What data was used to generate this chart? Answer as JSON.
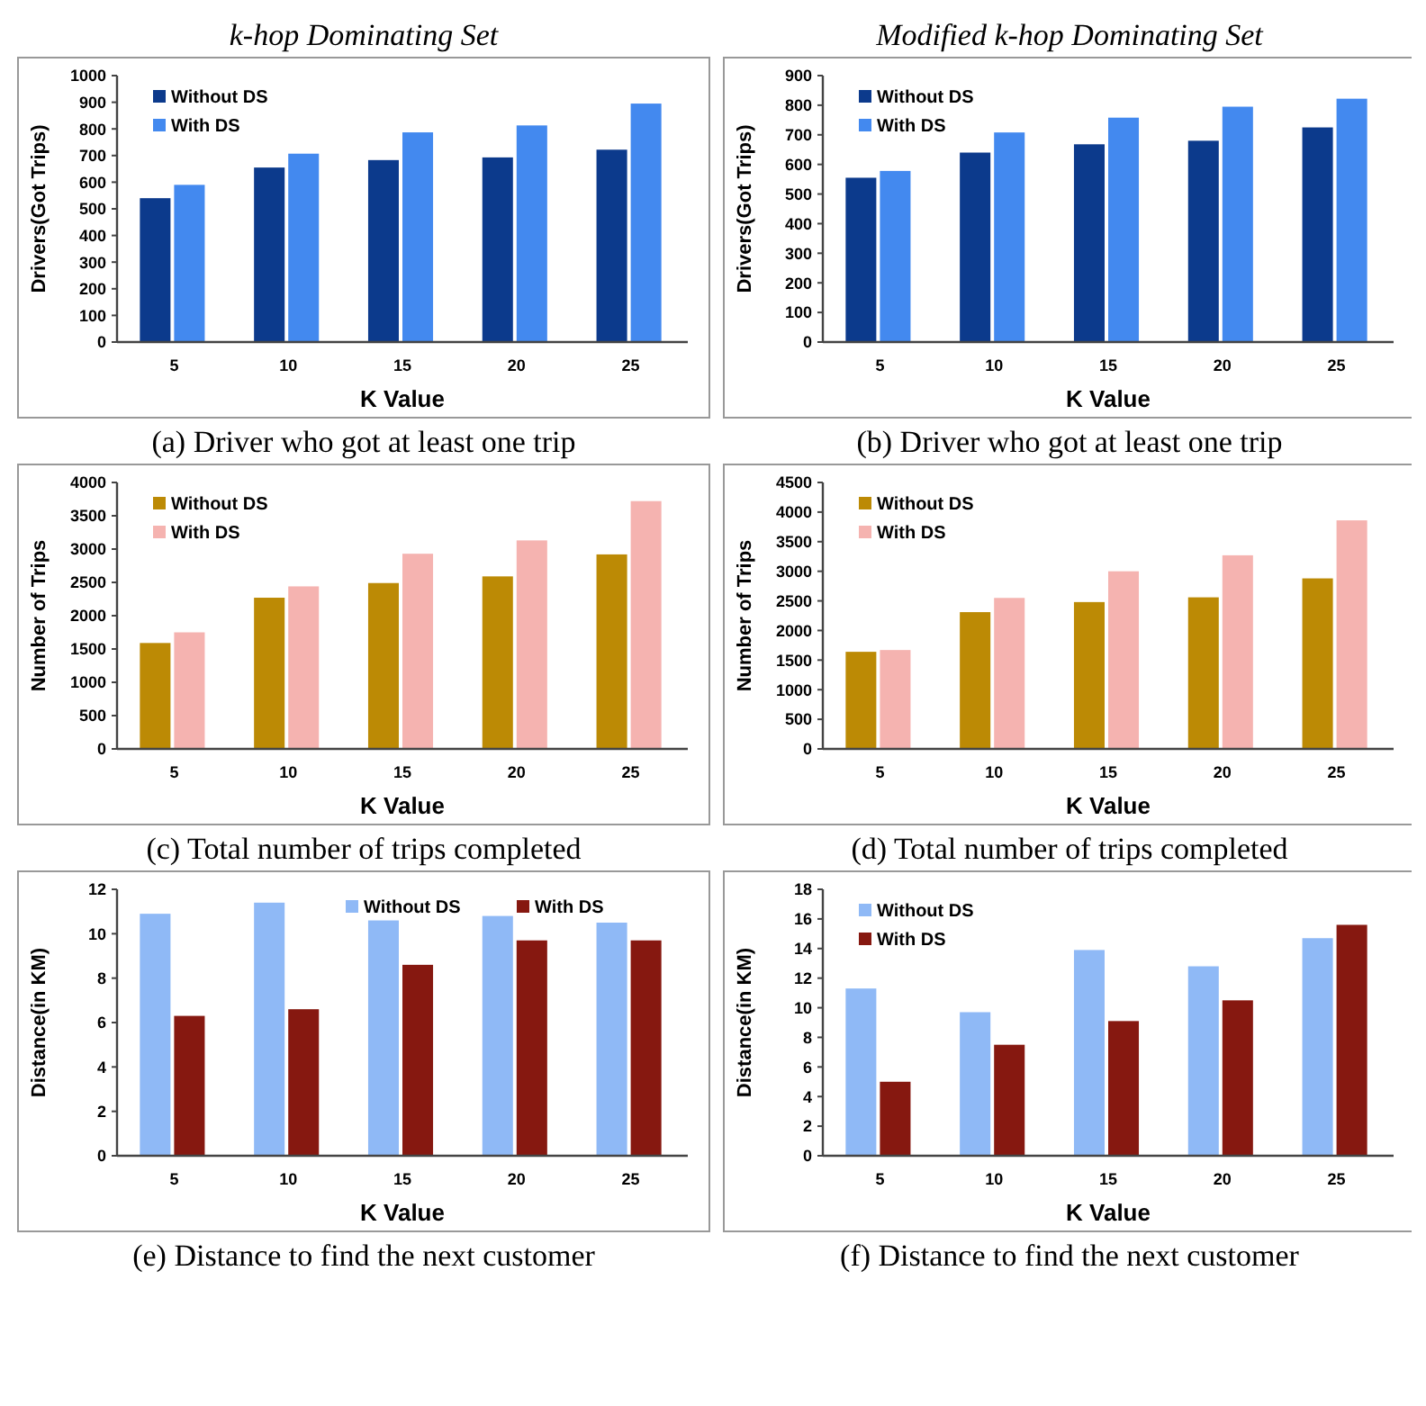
{
  "chart_data": [
    {
      "type": "bar",
      "title": "k-hop Dominating Set",
      "xlabel": "K Value",
      "ylabel": "Drivers(Got Trips)",
      "categories": [
        "5",
        "10",
        "15",
        "20",
        "25"
      ],
      "ylim": [
        0,
        1000
      ],
      "yticks": [
        0,
        100,
        200,
        300,
        400,
        500,
        600,
        700,
        800,
        900,
        1000
      ],
      "legend": "top left",
      "grid": false,
      "annotations": [
        "(a) Driver who got at least one trip"
      ],
      "series": [
        {
          "name": "Without DS",
          "color": "#0c3a8c",
          "values": [
            540,
            655,
            683,
            693,
            722
          ]
        },
        {
          "name": "With DS",
          "color": "#4389ef",
          "values": [
            590,
            707,
            787,
            813,
            895
          ]
        }
      ]
    },
    {
      "type": "bar",
      "title": "Modified k-hop Dominating Set",
      "xlabel": "K Value",
      "ylabel": "Drivers(Got Trips)",
      "categories": [
        "5",
        "10",
        "15",
        "20",
        "25"
      ],
      "ylim": [
        0,
        900
      ],
      "yticks": [
        0,
        100,
        200,
        300,
        400,
        500,
        600,
        700,
        800,
        900
      ],
      "legend": "top left",
      "grid": false,
      "annotations": [
        "(b) Driver who got at least one trip"
      ],
      "series": [
        {
          "name": "Without DS",
          "color": "#0c3a8c",
          "values": [
            555,
            640,
            668,
            680,
            725
          ]
        },
        {
          "name": "With DS",
          "color": "#4389ef",
          "values": [
            578,
            708,
            758,
            795,
            822
          ]
        }
      ]
    },
    {
      "type": "bar",
      "xlabel": "K Value",
      "ylabel": "Number of Trips",
      "categories": [
        "5",
        "10",
        "15",
        "20",
        "25"
      ],
      "ylim": [
        0,
        4000
      ],
      "yticks": [
        0,
        500,
        1000,
        1500,
        2000,
        2500,
        3000,
        3500,
        4000
      ],
      "legend": "top left",
      "grid": false,
      "annotations": [
        "(c) Total number of trips completed"
      ],
      "series": [
        {
          "name": "Without DS",
          "color": "#bc8a05",
          "values": [
            1590,
            2270,
            2490,
            2590,
            2920
          ]
        },
        {
          "name": "With DS",
          "color": "#f5b3b0",
          "values": [
            1750,
            2440,
            2930,
            3130,
            3720
          ]
        }
      ]
    },
    {
      "type": "bar",
      "xlabel": "K Value",
      "ylabel": "Number of Trips",
      "categories": [
        "5",
        "10",
        "15",
        "20",
        "25"
      ],
      "ylim": [
        0,
        4500
      ],
      "yticks": [
        0,
        500,
        1000,
        1500,
        2000,
        2500,
        3000,
        3500,
        4000,
        4500
      ],
      "legend": "top left",
      "grid": false,
      "annotations": [
        "(d) Total number of trips completed"
      ],
      "series": [
        {
          "name": "Without DS",
          "color": "#bc8a05",
          "values": [
            1640,
            2310,
            2480,
            2560,
            2880
          ]
        },
        {
          "name": "With DS",
          "color": "#f5b3b0",
          "values": [
            1670,
            2550,
            3000,
            3270,
            3860
          ]
        }
      ]
    },
    {
      "type": "bar",
      "xlabel": "K Value",
      "ylabel": "Distance(in KM)",
      "categories": [
        "5",
        "10",
        "15",
        "20",
        "25"
      ],
      "ylim": [
        0,
        12
      ],
      "yticks": [
        0,
        2,
        4,
        6,
        8,
        10,
        12
      ],
      "legend": "top right",
      "grid": false,
      "annotations": [
        "(e) Distance to find the next customer"
      ],
      "series": [
        {
          "name": "Without DS",
          "color": "#8fb9f6",
          "values": [
            10.9,
            11.4,
            10.6,
            10.8,
            10.5
          ]
        },
        {
          "name": "With DS",
          "color": "#861810",
          "values": [
            6.3,
            6.6,
            8.6,
            9.7,
            9.7
          ]
        }
      ]
    },
    {
      "type": "bar",
      "xlabel": "K Value",
      "ylabel": "Distance(in KM)",
      "categories": [
        "5",
        "10",
        "15",
        "20",
        "25"
      ],
      "ylim": [
        0,
        18
      ],
      "yticks": [
        0,
        2,
        4,
        6,
        8,
        10,
        12,
        14,
        16,
        18
      ],
      "legend": "top left",
      "grid": false,
      "annotations": [
        "(f) Distance to find the next customer"
      ],
      "series": [
        {
          "name": "Without DS",
          "color": "#8fb9f6",
          "values": [
            11.3,
            9.7,
            13.9,
            12.8,
            14.7
          ]
        },
        {
          "name": "With DS",
          "color": "#861810",
          "values": [
            5.0,
            7.5,
            9.1,
            10.5,
            15.6
          ]
        }
      ]
    }
  ]
}
